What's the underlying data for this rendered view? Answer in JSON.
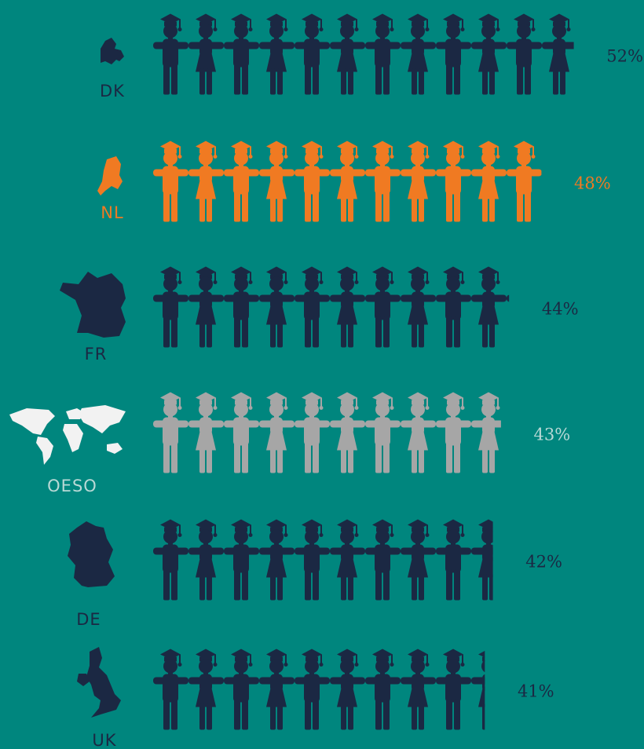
{
  "chart_data": {
    "type": "pictogram",
    "categories": [
      "DK",
      "NL",
      "FR",
      "OESO",
      "DE",
      "UK"
    ],
    "values": [
      52,
      48,
      44,
      43,
      42,
      41
    ],
    "value_labels": [
      "52%",
      "48%",
      "44%",
      "43%",
      "42%",
      "41%"
    ],
    "colors": [
      "#1b2843",
      "#f07a22",
      "#1b2843",
      "#a6a6a6",
      "#1b2843",
      "#1b2843"
    ],
    "label_colors": [
      "#1b2843",
      "#f07a22",
      "#1b2843",
      "#b9d9d6",
      "#1b2843",
      "#1b2843"
    ]
  }
}
